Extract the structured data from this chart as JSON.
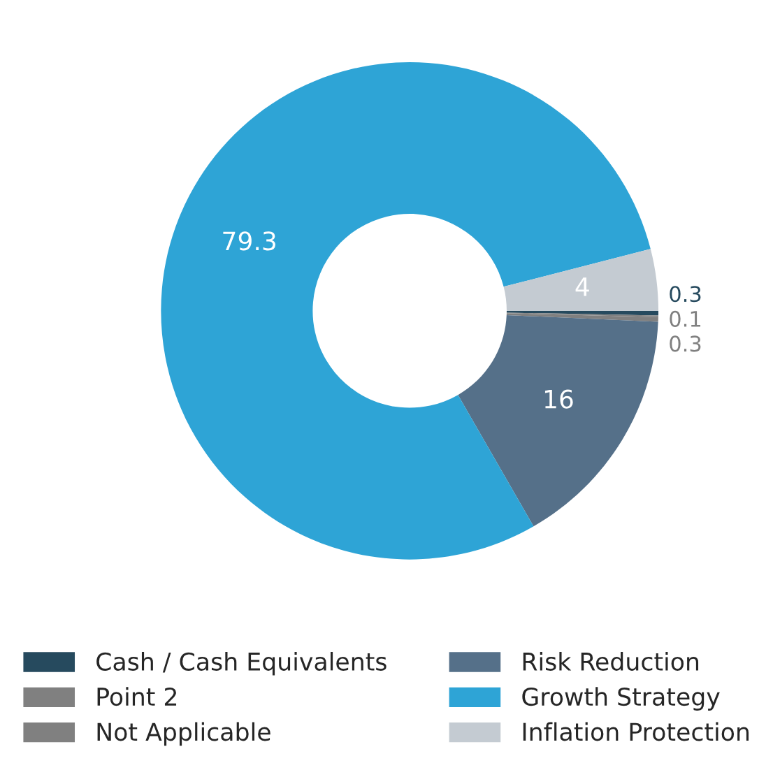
{
  "chart_data": {
    "type": "donut",
    "categories": [
      "Cash / Cash Equivalents",
      "Point 2",
      "Not Applicable",
      "Risk Reduction",
      "Growth Strategy",
      "Inflation Protection"
    ],
    "values": [
      0.3,
      0.1,
      0.3,
      16,
      79.3,
      4
    ],
    "colors": [
      "#264a5e",
      "#808080",
      "#808080",
      "#557089",
      "#2ea4d6",
      "#c4cbd2"
    ],
    "data_labels": true,
    "legend": "bottom"
  }
}
